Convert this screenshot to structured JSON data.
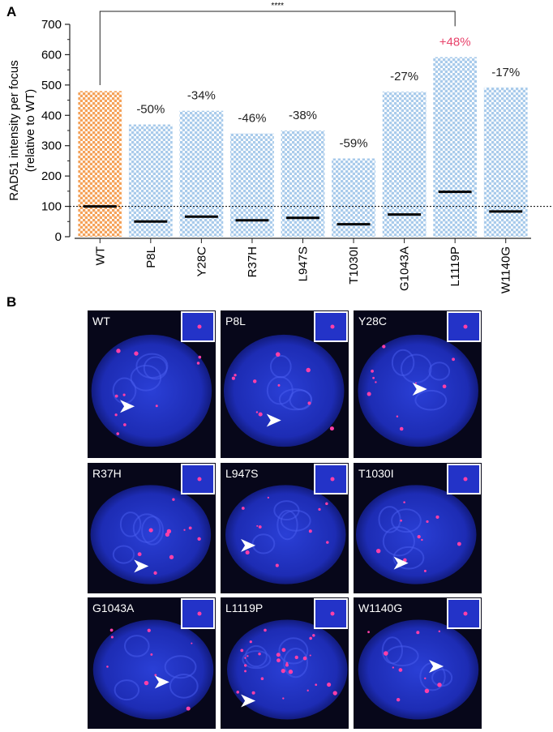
{
  "chart_data": {
    "type": "strip",
    "panel_label": "A",
    "ylabel": "RAD51 intensity per focus",
    "ylabel_sub": "(relative to WT)",
    "categories": [
      "WT",
      "P8L",
      "Y28C",
      "R37H",
      "L947S",
      "T1030I",
      "G1043A",
      "L1119P",
      "W1140G"
    ],
    "values": [
      100,
      50,
      66,
      54,
      62,
      41,
      73,
      148,
      83
    ],
    "max_values": [
      480,
      370,
      415,
      340,
      350,
      258,
      478,
      592,
      492
    ],
    "colors": [
      "#f5a259",
      "#a9cbeb",
      "#a9cbeb",
      "#a9cbeb",
      "#a9cbeb",
      "#a9cbeb",
      "#a9cbeb",
      "#a9cbeb",
      "#a9cbeb"
    ],
    "annotations": [
      null,
      "-50%",
      "-34%",
      "-46%",
      "-38%",
      "-59%",
      "-27%",
      "+48%",
      "-17%"
    ],
    "annotation_colors": [
      "#222222",
      "#222222",
      "#222222",
      "#222222",
      "#222222",
      "#222222",
      "#222222",
      "#e8436b",
      "#222222"
    ],
    "reference_line": 100,
    "significance": {
      "label": "****",
      "between": [
        "WT",
        "L1119P"
      ]
    },
    "ylim": [
      0,
      700
    ],
    "yticks": [
      0,
      100,
      200,
      300,
      400,
      500,
      600,
      700
    ]
  },
  "panel_b": {
    "label": "B",
    "images": [
      "WT",
      "P8L",
      "Y28C",
      "R37H",
      "L947S",
      "T1030I",
      "G1043A",
      "L1119P",
      "W1140G"
    ]
  }
}
